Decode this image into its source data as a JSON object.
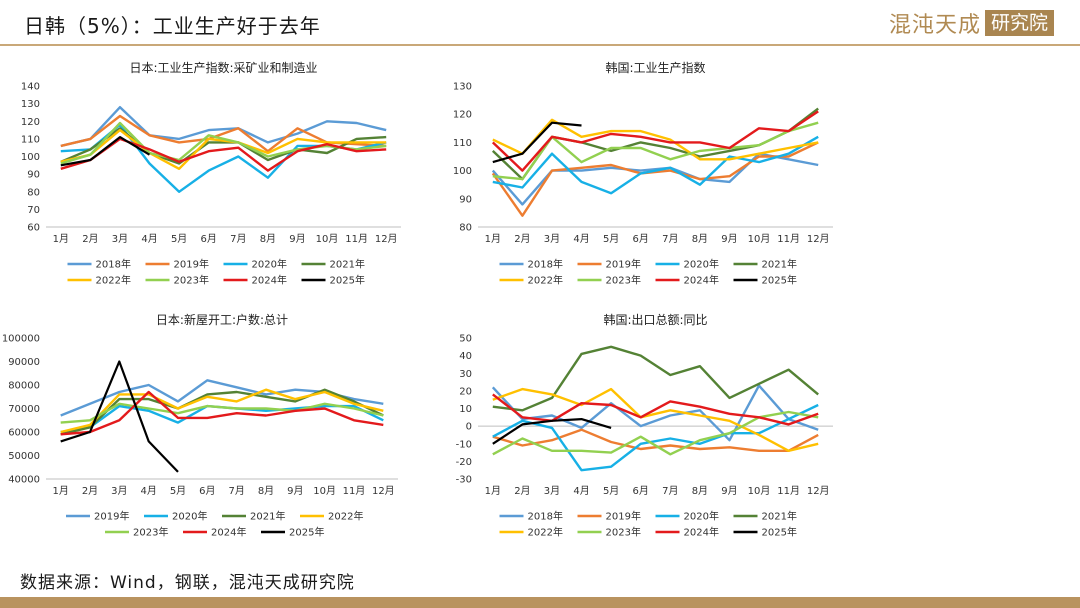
{
  "header": {
    "title": "日韩（5%）：工业生产好于去年",
    "brand_name": "混沌天成",
    "brand_box": "研究院"
  },
  "footer": {
    "source": "数据来源：Wind，钢联，混沌天成研究院"
  },
  "colors": {
    "y2018": "#5b9bd5",
    "y2019": "#ed7d31",
    "y2020": "#17b0e6",
    "y2021": "#548235",
    "y2022": "#ffc000",
    "y2023": "#92d050",
    "y2024": "#e31a1c",
    "y2025": "#000000"
  },
  "chart_data": [
    {
      "type": "line",
      "title": "日本:工业生产指数:采矿业和制造业",
      "categories": [
        "1月",
        "2月",
        "3月",
        "4月",
        "5月",
        "6月",
        "7月",
        "8月",
        "9月",
        "10月",
        "11月",
        "12月"
      ],
      "ylim": [
        60,
        140
      ],
      "yticks": [
        60,
        70,
        80,
        90,
        100,
        110,
        120,
        130,
        140
      ],
      "grid": false,
      "legend": "bottom",
      "series": [
        {
          "name": "2018年",
          "color": "#5b9bd5",
          "values": [
            106,
            110,
            128,
            112,
            110,
            115,
            116,
            108,
            113,
            120,
            119,
            115
          ]
        },
        {
          "name": "2019年",
          "color": "#ed7d31",
          "values": [
            106,
            110,
            123,
            112,
            108,
            110,
            116,
            103,
            116,
            108,
            107,
            106
          ]
        },
        {
          "name": "2020年",
          "color": "#17b0e6",
          "values": [
            103,
            104,
            118,
            96,
            80,
            92,
            100,
            88,
            106,
            106,
            104,
            108
          ]
        },
        {
          "name": "2021年",
          "color": "#548235",
          "values": [
            97,
            104,
            116,
            102,
            96,
            108,
            108,
            98,
            104,
            102,
            110,
            111
          ]
        },
        {
          "name": "2022年",
          "color": "#ffc000",
          "values": [
            97,
            101,
            115,
            102,
            93,
            110,
            108,
            102,
            110,
            108,
            108,
            108
          ]
        },
        {
          "name": "2023年",
          "color": "#92d050",
          "values": [
            96,
            101,
            119,
            102,
            98,
            112,
            108,
            100,
            104,
            106,
            104,
            106
          ]
        },
        {
          "name": "2024年",
          "color": "#e31a1c",
          "values": [
            93,
            98,
            110,
            104,
            97,
            103,
            105,
            92,
            103,
            107,
            103,
            104
          ]
        },
        {
          "name": "2025年",
          "color": "#000000",
          "values": [
            95,
            98,
            111,
            101,
            null,
            null,
            null,
            null,
            null,
            null,
            null,
            null
          ]
        }
      ]
    },
    {
      "type": "line",
      "title": "韩国:工业生产指数",
      "categories": [
        "1月",
        "2月",
        "3月",
        "4月",
        "5月",
        "6月",
        "7月",
        "8月",
        "9月",
        "10月",
        "11月",
        "12月"
      ],
      "ylim": [
        80,
        130
      ],
      "yticks": [
        80,
        90,
        100,
        110,
        120,
        130
      ],
      "grid": false,
      "legend": "bottom",
      "series": [
        {
          "name": "2018年",
          "color": "#5b9bd5",
          "values": [
            100,
            88,
            100,
            100,
            101,
            100,
            101,
            97,
            96,
            106,
            104,
            102
          ]
        },
        {
          "name": "2019年",
          "color": "#ed7d31",
          "values": [
            99,
            84,
            100,
            101,
            102,
            99,
            100,
            97,
            98,
            105,
            105,
            110
          ]
        },
        {
          "name": "2020年",
          "color": "#17b0e6",
          "values": [
            96,
            94,
            106,
            96,
            92,
            99,
            101,
            95,
            105,
            103,
            106,
            112
          ]
        },
        {
          "name": "2021年",
          "color": "#548235",
          "values": [
            107,
            97,
            112,
            110,
            107,
            110,
            108,
            105,
            107,
            109,
            114,
            122
          ]
        },
        {
          "name": "2022年",
          "color": "#ffc000",
          "values": [
            111,
            106,
            118,
            112,
            114,
            114,
            111,
            104,
            104,
            106,
            108,
            110
          ]
        },
        {
          "name": "2023年",
          "color": "#92d050",
          "values": [
            98,
            97,
            112,
            103,
            108,
            108,
            104,
            107,
            108,
            109,
            114,
            117
          ]
        },
        {
          "name": "2024年",
          "color": "#e31a1c",
          "values": [
            110,
            100,
            112,
            110,
            113,
            112,
            110,
            110,
            108,
            115,
            114,
            121
          ]
        },
        {
          "name": "2025年",
          "color": "#000000",
          "values": [
            103,
            106,
            117,
            116,
            null,
            null,
            null,
            null,
            null,
            null,
            null,
            null
          ]
        }
      ]
    },
    {
      "type": "line",
      "title": "日本:新屋开工:户数:总计",
      "categories": [
        "1月",
        "2月",
        "3月",
        "4月",
        "5月",
        "6月",
        "7月",
        "8月",
        "9月",
        "10月",
        "11月",
        "12月"
      ],
      "ylim": [
        40000,
        100000
      ],
      "yticks": [
        40000,
        50000,
        60000,
        70000,
        80000,
        90000,
        100000
      ],
      "grid": false,
      "legend": "bottom",
      "series": [
        {
          "name": "2019年",
          "color": "#5b9bd5",
          "values": [
            67000,
            72000,
            77000,
            80000,
            73000,
            82000,
            79000,
            76000,
            78000,
            77000,
            74000,
            72000
          ]
        },
        {
          "name": "2020年",
          "color": "#17b0e6",
          "values": [
            60000,
            62000,
            71000,
            69000,
            64000,
            71000,
            70000,
            69000,
            70000,
            71000,
            71000,
            65000
          ]
        },
        {
          "name": "2021年",
          "color": "#548235",
          "values": [
            59000,
            62000,
            74000,
            74000,
            70000,
            76000,
            77000,
            75000,
            73000,
            78000,
            73000,
            67000
          ]
        },
        {
          "name": "2022年",
          "color": "#ffc000",
          "values": [
            60000,
            63000,
            76000,
            76000,
            70000,
            75000,
            73000,
            78000,
            74000,
            77000,
            72000,
            69000
          ]
        },
        {
          "name": "2023年",
          "color": "#92d050",
          "values": [
            64000,
            65000,
            72000,
            70000,
            68000,
            71000,
            70000,
            70000,
            69000,
            72000,
            70000,
            67000
          ]
        },
        {
          "name": "2024年",
          "color": "#e31a1c",
          "values": [
            59000,
            60000,
            65000,
            77000,
            66000,
            66000,
            68000,
            67000,
            69000,
            70000,
            65000,
            63000
          ]
        },
        {
          "name": "2025年",
          "color": "#000000",
          "values": [
            56000,
            60000,
            90000,
            56000,
            43000,
            null,
            null,
            null,
            null,
            null,
            null,
            null
          ]
        }
      ]
    },
    {
      "type": "line",
      "title": "韩国:出口总额:同比",
      "categories": [
        "1月",
        "2月",
        "3月",
        "4月",
        "5月",
        "6月",
        "7月",
        "8月",
        "9月",
        "10月",
        "11月",
        "12月"
      ],
      "ylim": [
        -30,
        50
      ],
      "yticks": [
        -30,
        -20,
        -10,
        0,
        10,
        20,
        30,
        40,
        50
      ],
      "grid": false,
      "legend": "bottom",
      "series": [
        {
          "name": "2018年",
          "color": "#5b9bd5",
          "values": [
            22,
            4,
            6,
            -1,
            13,
            0,
            6,
            9,
            -8,
            23,
            4,
            -2
          ]
        },
        {
          "name": "2019年",
          "color": "#ed7d31",
          "values": [
            -6,
            -11,
            -8,
            -2,
            -9,
            -13,
            -11,
            -13,
            -12,
            -14,
            -14,
            -5
          ]
        },
        {
          "name": "2020年",
          "color": "#17b0e6",
          "values": [
            -6,
            3,
            -1,
            -25,
            -23,
            -10,
            -7,
            -10,
            -4,
            -4,
            4,
            12
          ]
        },
        {
          "name": "2021年",
          "color": "#548235",
          "values": [
            11,
            9,
            16,
            41,
            45,
            40,
            29,
            34,
            16,
            24,
            32,
            18
          ]
        },
        {
          "name": "2022年",
          "color": "#ffc000",
          "values": [
            15,
            21,
            18,
            12,
            21,
            5,
            9,
            6,
            3,
            -5,
            -14,
            -10
          ]
        },
        {
          "name": "2023年",
          "color": "#92d050",
          "values": [
            -16,
            -7,
            -14,
            -14,
            -15,
            -6,
            -16,
            -8,
            -4,
            5,
            8,
            5
          ]
        },
        {
          "name": "2024年",
          "color": "#e31a1c",
          "values": [
            18,
            5,
            3,
            13,
            12,
            5,
            14,
            11,
            7,
            5,
            1,
            7
          ]
        },
        {
          "name": "2025年",
          "color": "#000000",
          "values": [
            -10,
            1,
            3,
            4,
            -1,
            null,
            null,
            null,
            null,
            null,
            null,
            null
          ]
        }
      ]
    }
  ]
}
